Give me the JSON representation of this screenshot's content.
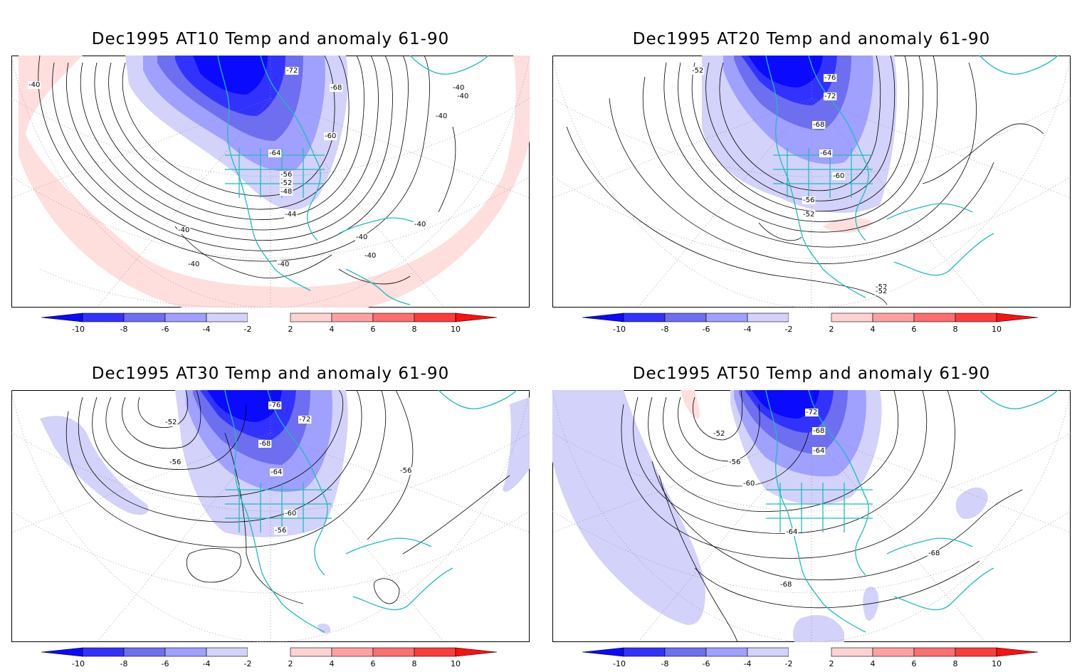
{
  "colorbar": {
    "labels": [
      "-10",
      "-8",
      "-6",
      "-4",
      "-2",
      "2",
      "4",
      "6",
      "8",
      "10"
    ],
    "colors": [
      "#0a0aff",
      "#3232ff",
      "#6e6ef0",
      "#a0a0ff",
      "#d2d2fa",
      "#ffffff",
      "#ffd2d2",
      "#ffa0a0",
      "#ff6e6e",
      "#ff3c3c",
      "#ff1010"
    ]
  },
  "coast_color": "#1ebcbc",
  "panels": [
    {
      "title": "Dec1995 AT10 Temp and anomaly 61-90",
      "contour_labels": [
        "-72",
        "-68",
        "-60",
        "-64",
        "-56",
        "-52",
        "-48",
        "-44",
        "-40",
        "-40",
        "-40",
        "-40",
        "-40",
        "-40",
        "-40",
        "-40",
        "-40",
        "-40",
        "-40"
      ],
      "map_colors": [
        "#ffdede",
        "#0a0aff",
        "#3232ff",
        "#6e6ef0",
        "#a0a0ff",
        "#d2d2fa"
      ]
    },
    {
      "title": "Dec1995 AT20 Temp and anomaly 61-90",
      "contour_labels": [
        "-52",
        "-76",
        "-72",
        "-68",
        "-64",
        "-60",
        "-56",
        "-52",
        "-52",
        "-52"
      ],
      "map_colors": [
        "#ffdede",
        "#0a0aff",
        "#3232ff",
        "#6e6ef0",
        "#a0a0ff",
        "#d2d2fa"
      ]
    },
    {
      "title": "Dec1995 AT30 Temp and anomaly 61-90",
      "contour_labels": [
        "-52",
        "-56",
        "-76",
        "-72",
        "-68",
        "-64",
        "-60",
        "-56",
        "-56"
      ],
      "map_colors": [
        "#ffdede",
        "#0a0aff",
        "#3232ff",
        "#6e6ef0",
        "#a0a0ff",
        "#d2d2fa"
      ]
    },
    {
      "title": "Dec1995 AT50 Temp and anomaly 61-90",
      "contour_labels": [
        "-52",
        "-56",
        "-60",
        "-72",
        "-68",
        "-64",
        "-64",
        "-68",
        "-68"
      ],
      "map_colors": [
        "#ffdede",
        "#0a0aff",
        "#3232ff",
        "#6e6ef0",
        "#a0a0ff",
        "#d2d2fa"
      ]
    }
  ]
}
